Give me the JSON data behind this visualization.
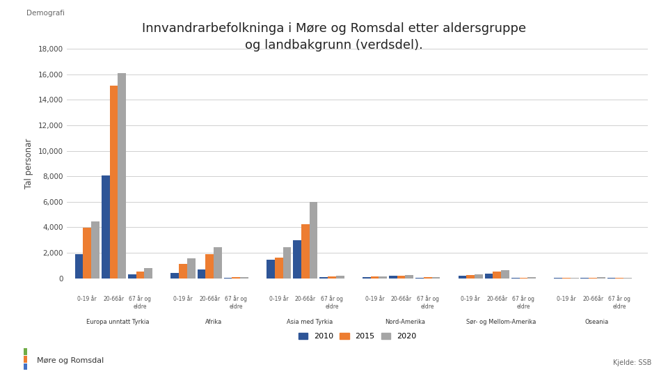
{
  "title": "Innvandrarbefolkninga i Møre og Romsdal etter aldersgruppe\nog landbakgrunn (verdsdel).",
  "ylabel": "Tal personar",
  "header_label": "Demografi",
  "source_label": "Kjelde: SSB",
  "footer_label": "Møre og Romsdal",
  "regions": [
    "Europa unntatt Tyrkia",
    "Afrika",
    "Asia med Tyrkia",
    "Nord-Amerika",
    "Sør- og Mellom-Amerika",
    "Oseania"
  ],
  "age_groups": [
    "0-19 år",
    "20-66år",
    "67 år og\neldre"
  ],
  "age_group_labels": [
    "0-19 år",
    "20-66år",
    "67 år og\neldre"
  ],
  "years": [
    "2010",
    "2015",
    "2020"
  ],
  "colors": [
    "#2e5597",
    "#ed7d31",
    "#a5a5a5"
  ],
  "data": {
    "Europa unntatt Tyrkia": {
      "0": [
        1900,
        3950,
        4450
      ],
      "1": [
        8050,
        15100,
        16100
      ],
      "2": [
        300,
        550,
        800
      ]
    },
    "Afrika": {
      "0": [
        400,
        1100,
        1550
      ],
      "1": [
        700,
        1900,
        2450
      ],
      "2": [
        50,
        80,
        100
      ]
    },
    "Asia med Tyrkia": {
      "0": [
        1450,
        1600,
        2450
      ],
      "1": [
        3000,
        4250,
        6000
      ],
      "2": [
        100,
        150,
        200
      ]
    },
    "Nord-Amerika": {
      "0": [
        100,
        130,
        150
      ],
      "1": [
        180,
        220,
        250
      ],
      "2": [
        50,
        80,
        100
      ]
    },
    "Sør- og Mellom-Amerika": {
      "0": [
        200,
        250,
        300
      ],
      "1": [
        350,
        500,
        650
      ],
      "2": [
        30,
        50,
        70
      ]
    },
    "Oseania": {
      "0": [
        20,
        30,
        40
      ],
      "1": [
        40,
        60,
        80
      ],
      "2": [
        10,
        15,
        20
      ]
    }
  },
  "ylim": [
    0,
    18000
  ],
  "yticks": [
    0,
    2000,
    4000,
    6000,
    8000,
    10000,
    12000,
    14000,
    16000,
    18000
  ],
  "background_color": "#ffffff",
  "grid_color": "#d0d0d0"
}
